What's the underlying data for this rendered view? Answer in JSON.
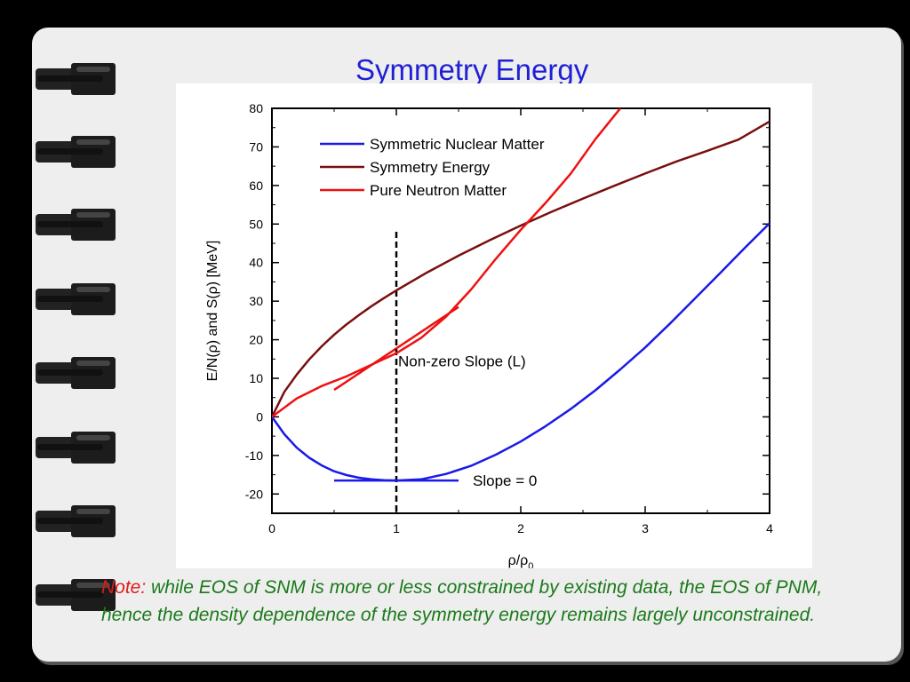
{
  "slide": {
    "title": "Symmetry Energy",
    "note_label": "Note:",
    "note_text": " while EOS of SNM is more or less constrained by existing data, the EOS of PNM, hence the density dependence of the symmetry energy remains largely unconstrained."
  },
  "colors": {
    "background": "#000000",
    "page": "#eeeeee",
    "title": "#1f1fd6",
    "note_label": "#e01b1b",
    "note_text": "#1a7a1a",
    "snm": "#1a1ae6",
    "symmetry": "#7a0f0f",
    "pnm": "#ee1111"
  },
  "chart_data": {
    "type": "line",
    "title": "",
    "xlabel": "ρ/ρ",
    "xlabel_sub": "0",
    "ylabel": "E/N(ρ) and S(ρ) [MeV]",
    "xlim": [
      0,
      4
    ],
    "ylim": [
      -25,
      80
    ],
    "x_ticks": [
      0,
      1,
      2,
      3,
      4
    ],
    "y_ticks": [
      -20,
      -10,
      0,
      10,
      20,
      30,
      40,
      50,
      60,
      70,
      80
    ],
    "grid": false,
    "legend_position": "top-left",
    "series": [
      {
        "name": "Symmetric Nuclear Matter",
        "color": "#1a1ae6",
        "x": [
          0,
          0.1,
          0.2,
          0.3,
          0.4,
          0.5,
          0.6,
          0.7,
          0.8,
          0.9,
          1.0,
          1.2,
          1.4,
          1.6,
          1.8,
          2.0,
          2.2,
          2.4,
          2.6,
          2.8,
          3.0,
          3.2,
          3.4,
          3.6,
          3.8,
          4.0
        ],
        "y": [
          0,
          -4.5,
          -8.0,
          -10.6,
          -12.6,
          -14.1,
          -15.1,
          -15.8,
          -16.2,
          -16.4,
          -16.5,
          -16.2,
          -14.8,
          -12.7,
          -9.8,
          -6.4,
          -2.4,
          2.0,
          6.9,
          12.3,
          18.0,
          24.2,
          30.7,
          37.2,
          43.8,
          50.2
        ]
      },
      {
        "name": "Symmetry Energy",
        "color": "#7a0f0f",
        "x": [
          0,
          0.1,
          0.2,
          0.3,
          0.4,
          0.5,
          0.6,
          0.7,
          0.8,
          0.9,
          1.0,
          1.25,
          1.5,
          1.75,
          2.0,
          2.25,
          2.5,
          2.75,
          3.0,
          3.25,
          3.5,
          3.75,
          4.0
        ],
        "y": [
          0,
          6.5,
          11.0,
          14.9,
          18.3,
          21.3,
          24.0,
          26.4,
          28.7,
          30.8,
          32.8,
          37.5,
          41.8,
          45.8,
          49.6,
          53.2,
          56.6,
          59.9,
          63.1,
          66.2,
          69.0,
          71.9,
          76.6
        ]
      },
      {
        "name": "Pure Neutron Matter",
        "color": "#ee1111",
        "x": [
          0,
          0.2,
          0.4,
          0.6,
          0.8,
          1.0,
          1.2,
          1.4,
          1.6,
          1.8,
          2.0,
          2.2,
          2.4,
          2.6,
          2.8
        ],
        "y": [
          0,
          4.8,
          8.0,
          10.5,
          13.5,
          16.5,
          20.5,
          26.0,
          33.0,
          41.0,
          48.5,
          55.5,
          63.0,
          72.0,
          80.0
        ]
      }
    ],
    "annotations": [
      {
        "type": "tangent",
        "color": "#ee1111",
        "x": [
          0.5,
          1.5
        ],
        "y": [
          7.0,
          28.5
        ]
      },
      {
        "type": "tangent",
        "color": "#1a1ae6",
        "x": [
          0.5,
          1.5
        ],
        "y": [
          -16.5,
          -16.5
        ]
      },
      {
        "type": "vline",
        "style": "dashed",
        "color": "#000000",
        "x": 1.0,
        "y": [
          -25,
          48
        ]
      },
      {
        "type": "label",
        "text": "Non-zero Slope (L)",
        "x": 1.0,
        "y": 14.5
      },
      {
        "type": "label",
        "text": "Slope = 0",
        "x": 1.6,
        "y": -16.5
      }
    ]
  }
}
